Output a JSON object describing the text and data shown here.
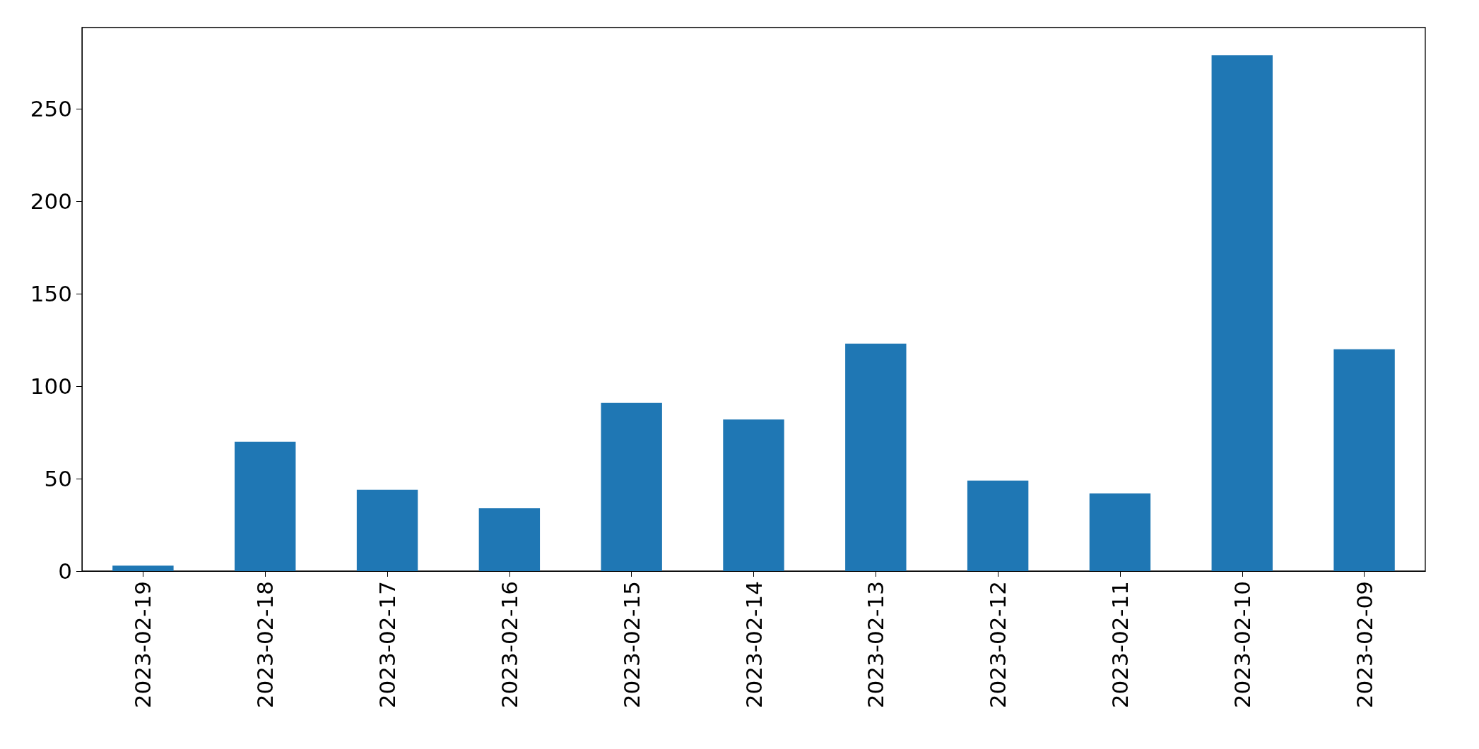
{
  "chart_data": {
    "type": "bar",
    "categories": [
      "2023-02-19",
      "2023-02-18",
      "2023-02-17",
      "2023-02-16",
      "2023-02-15",
      "2023-02-14",
      "2023-02-13",
      "2023-02-12",
      "2023-02-11",
      "2023-02-10",
      "2023-02-09"
    ],
    "values": [
      3,
      70,
      44,
      34,
      91,
      82,
      123,
      49,
      42,
      279,
      120
    ],
    "color": "#1f77b4",
    "ylim": [
      0,
      294
    ],
    "yticks": [
      0,
      50,
      100,
      150,
      200,
      250
    ],
    "grid": false
  }
}
